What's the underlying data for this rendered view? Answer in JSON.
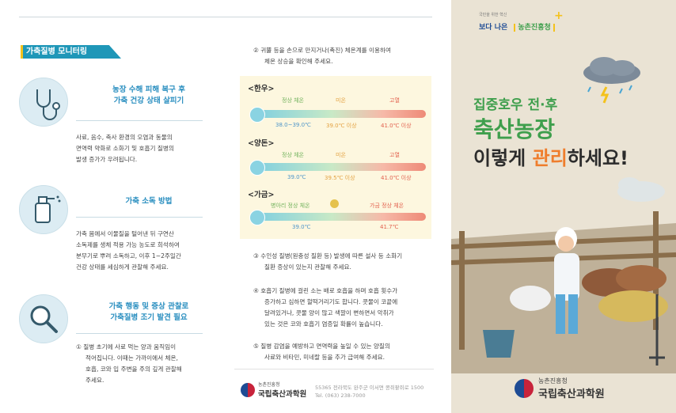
{
  "section_title": "가축질병 모니터링",
  "block1": {
    "heading_line1": "농장 수해 피해 복구 후",
    "heading_line2": "가축 건강 상태 살피기",
    "body": [
      "사료, 음수, 축사 환경의 오염과 동물의",
      "면역력 약화로 소화기 및 호흡기 질병의",
      "발생 증가가 우려됩니다."
    ]
  },
  "block2": {
    "heading": "가축 소독 방법",
    "body": [
      "가축 몸에서 이물질을 털어낸 뒤 구연산",
      "소독제를 생체 적용 가능 농도로 희석하여",
      "분무기로 뿌려 소독하고, 이후 1~2주일간",
      "건강 상태를 세심하게 관찰해 주세요."
    ]
  },
  "block3": {
    "heading_line1": "가축 행동 및 증상 관찰로",
    "heading_line2": "가축질병 조기 발견 필요",
    "body": [
      "① 질병 초기에 사료 먹는 양과 움직임이",
      "적어집니다. 이때는 가까이에서 체온,",
      "호흡, 코와 입 주변을 주의 깊게 관찰해",
      "주세요."
    ]
  },
  "item2": [
    "② 귀뿔 등을 손으로 만지거나(촉진) 체온계를 이용하여",
    "체온 상승을 확인해 주세요."
  ],
  "temps": [
    {
      "title": "<한우>",
      "labels": [
        "정상 체온",
        "미온",
        "고열"
      ],
      "values": [
        "38.0~39.0℃",
        "39.0℃ 이상",
        "41.0℃ 이상"
      ],
      "icon": "cow-icon"
    },
    {
      "title": "<양돈>",
      "labels": [
        "정상 체온",
        "미온",
        "고열"
      ],
      "values": [
        "39.0℃",
        "39.5℃ 이상",
        "41.0℃ 이상"
      ],
      "icon": "pig-icon"
    },
    {
      "title": "<가금>",
      "labels": [
        "병아리 정상 체온",
        "가금 정상 체온"
      ],
      "values": [
        "39.0℃",
        "41.7℃"
      ],
      "icon": "chicken-icon"
    }
  ],
  "item3": [
    "③ 수인성 질병(원충성 질환 등) 발생에 따른 설사 등 소화기",
    "질환 증상이 있는지 관찰해 주세요."
  ],
  "item4": [
    "④ 호흡기 질병에 걸린 소는 배로 호흡을 하며 호흡 횟수가",
    "증가하고 심하면 헐떡거리기도 합니다. 콧물이 코끝에",
    "달려있거나, 콧물 양이 많고 색깔이 변하면서 악취가",
    "있는 것은 코와 호흡기 염증일 확률이 높습니다."
  ],
  "item5": [
    "⑤ 질병 감염을 예방하고 면역력을 높일 수 있는 양질의",
    "사료와 비타민, 미네랄 등을 추가 급여해 주세요."
  ],
  "footer": {
    "org_small": "농촌진흥청",
    "org": "국립축산과학원",
    "address": "55365 전라북도 완주군 이서면 콩쥐팥쥐로 1500",
    "tel": "Tel. (063) 238-7000"
  },
  "cover": {
    "slogan_small": "국민을 위한 혁신",
    "slogan": "보다 나은",
    "agency": "농촌진흥청",
    "line1": "집중호우 전·후",
    "line2": "축산농장",
    "line3_pre": "이렇게 ",
    "line3_em": "관리",
    "line3_post": "하세요!",
    "bottom_small": "농촌진흥청",
    "bottom_org": "국립축산과학원"
  },
  "colors": {
    "teal": "#1f97b8",
    "blue_text": "#2b8fc0",
    "cover_green": "#3f9f4d",
    "cover_em": "#ef7d2c",
    "cover_bg": "#eae3d4"
  }
}
